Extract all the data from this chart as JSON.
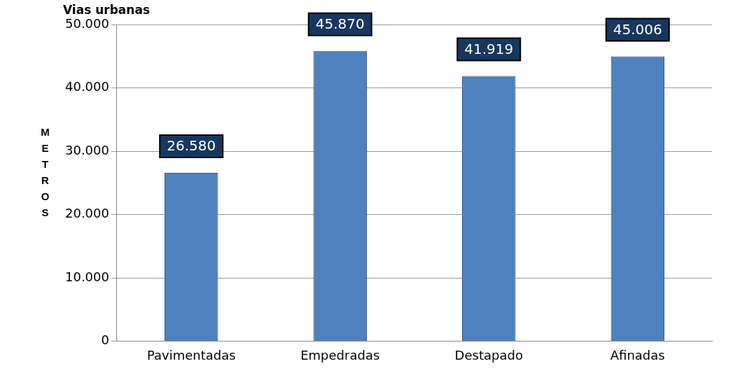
{
  "chart_data": {
    "type": "bar",
    "title": "Vias urbanas",
    "ylabel": "METROS",
    "categories": [
      "Pavimentadas",
      "Empedradas",
      "Destapado",
      "Afinadas"
    ],
    "values": [
      26580,
      45870,
      41919,
      45006
    ],
    "color": "#4f81bd",
    "value_labels": [
      "26.580",
      "45.870",
      "41.919",
      "45.006"
    ],
    "ylim": [
      0,
      50000
    ],
    "yticks": [
      {
        "value": 0,
        "label": "0"
      },
      {
        "value": 10000,
        "label": "10.000"
      },
      {
        "value": 20000,
        "label": "20.000"
      },
      {
        "value": 30000,
        "label": "30.000"
      },
      {
        "value": 40000,
        "label": "40.000"
      },
      {
        "value": 50000,
        "label": "50.000"
      }
    ],
    "grid": "y",
    "legend": false
  }
}
